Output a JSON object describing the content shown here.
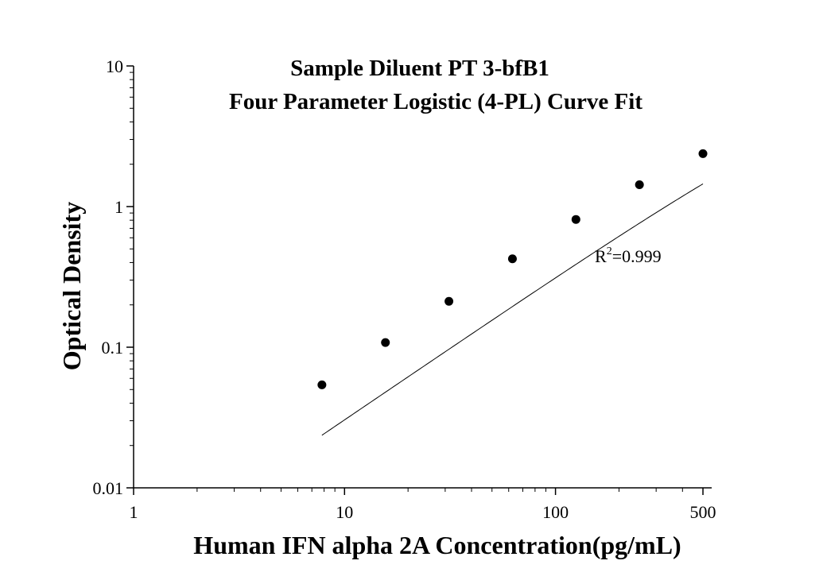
{
  "chart_data": {
    "type": "scatter",
    "title_lines": [
      "Sample Diluent PT 3-bfB1",
      "Four Parameter Logistic (4-PL) Curve Fit"
    ],
    "xlabel": "Human IFN alpha 2A Concentration(pg/mL)",
    "ylabel": "Optical Density",
    "x_scale": "log",
    "y_scale": "log",
    "xlim": [
      1,
      550
    ],
    "ylim": [
      0.01,
      10
    ],
    "x_ticks": [
      {
        "value": 1,
        "label": "1"
      },
      {
        "value": 10,
        "label": "10"
      },
      {
        "value": 100,
        "label": "100"
      },
      {
        "value": 500,
        "label": "500"
      }
    ],
    "y_ticks": [
      {
        "value": 0.01,
        "label": "0.01"
      },
      {
        "value": 0.1,
        "label": "0.1"
      },
      {
        "value": 1,
        "label": "1"
      },
      {
        "value": 10,
        "label": "10"
      }
    ],
    "points": [
      {
        "x": 7.8125,
        "y": 0.054
      },
      {
        "x": 15.625,
        "y": 0.108
      },
      {
        "x": 31.25,
        "y": 0.212
      },
      {
        "x": 62.5,
        "y": 0.425
      },
      {
        "x": 125,
        "y": 0.81
      },
      {
        "x": 250,
        "y": 1.43
      },
      {
        "x": 500,
        "y": 2.38
      }
    ],
    "fit_curve": {
      "A": 0.0,
      "B": 1.02,
      "C": 3500,
      "D": 12.0,
      "x_range": [
        7.8125,
        500
      ]
    },
    "annotation": {
      "base": "R",
      "sup": "2",
      "rest": "=0.999"
    },
    "grid": false,
    "legend": "none",
    "colors": {
      "marker": "#000000",
      "line": "#000000",
      "axis": "#000000"
    }
  }
}
